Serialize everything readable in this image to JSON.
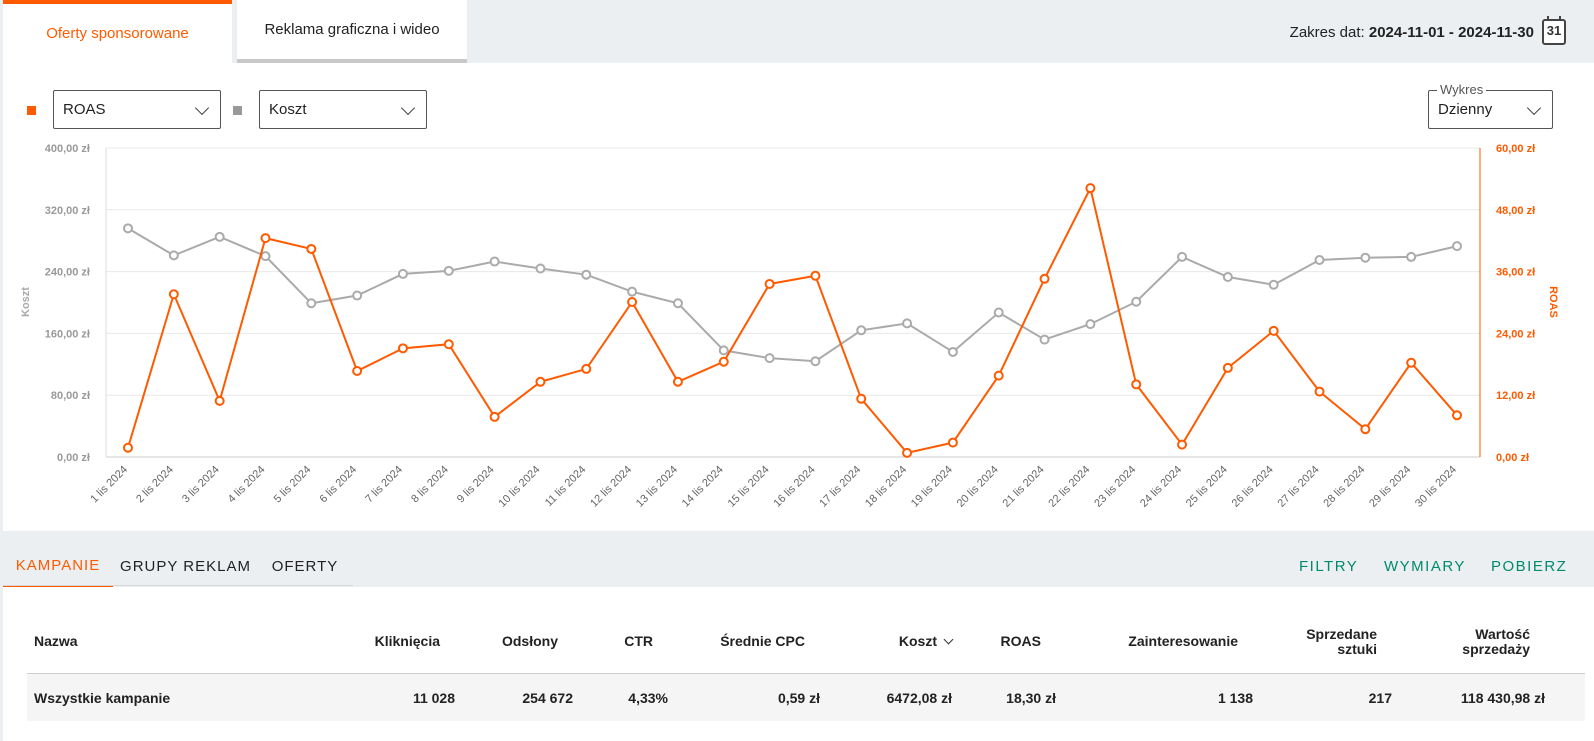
{
  "top_tabs": [
    {
      "label": "Oferty sponsorowane",
      "active": true
    },
    {
      "label": "Reklama graficzna i wideo",
      "active": false
    }
  ],
  "date_range": {
    "label": "Zakres dat:",
    "value": "2024-11-01 - 2024-11-30",
    "calendar_day": "31"
  },
  "controls": {
    "metric1": {
      "value": "ROAS",
      "color": "#ff5a00"
    },
    "metric2": {
      "value": "Koszt",
      "color": "#999999"
    },
    "chart_period": {
      "legend": "Wykres",
      "value": "Dzienny"
    }
  },
  "chart_data": {
    "type": "line",
    "x": [
      "1 lis 2024",
      "2 lis 2024",
      "3 lis 2024",
      "4 lis 2024",
      "5 lis 2024",
      "6 lis 2024",
      "7 lis 2024",
      "8 lis 2024",
      "9 lis 2024",
      "10 lis 2024",
      "11 lis 2024",
      "12 lis 2024",
      "13 lis 2024",
      "14 lis 2024",
      "15 lis 2024",
      "16 lis 2024",
      "17 lis 2024",
      "18 lis 2024",
      "19 lis 2024",
      "20 lis 2024",
      "21 lis 2024",
      "22 lis 2024",
      "23 lis 2024",
      "24 lis 2024",
      "25 lis 2024",
      "26 lis 2024",
      "27 lis 2024",
      "28 lis 2024",
      "29 lis 2024",
      "30 lis 2024"
    ],
    "series": [
      {
        "name": "Koszt",
        "axis": "left",
        "color": "#aaaaaa",
        "values": [
          296,
          261,
          285,
          260,
          199,
          209,
          237,
          241,
          253,
          244,
          236,
          214,
          199,
          138,
          128,
          124,
          164,
          173,
          136,
          187,
          152,
          172,
          201,
          259,
          233,
          223,
          255,
          258,
          259,
          273
        ]
      },
      {
        "name": "ROAS",
        "axis": "right",
        "color": "#ff5a00",
        "values": [
          1.8,
          31.6,
          10.9,
          42.5,
          40.4,
          16.7,
          21.1,
          21.9,
          7.8,
          14.6,
          17.1,
          30.1,
          14.6,
          18.5,
          33.6,
          35.2,
          11.3,
          0.8,
          2.8,
          15.8,
          34.6,
          52.2,
          14.1,
          2.4,
          17.3,
          24.5,
          12.7,
          5.4,
          18.3,
          8.1
        ]
      }
    ],
    "y_left": {
      "label": "Koszt",
      "ticks": [
        "0,00 zł",
        "80,00 zł",
        "160,00 zł",
        "240,00 zł",
        "320,00 zł",
        "400,00 zł"
      ],
      "min": 0,
      "max": 400
    },
    "y_right": {
      "label": "ROAS",
      "ticks": [
        "0,00 zł",
        "12,00 zł",
        "24,00 zł",
        "36,00 zł",
        "48,00 zł",
        "60,00 zł"
      ],
      "min": 0,
      "max": 60
    },
    "grid": true
  },
  "bottom_tabs": [
    {
      "label": "KAMPANIE",
      "active": true
    },
    {
      "label": "GRUPY REKLAM",
      "active": false
    },
    {
      "label": "OFERTY",
      "active": false
    }
  ],
  "actions": {
    "filters": "FILTRY",
    "dimensions": "WYMIARY",
    "download": "POBIERZ"
  },
  "table": {
    "headers": {
      "name": "Nazwa",
      "clicks": "Kliknięcia",
      "views": "Odsłony",
      "ctr": "CTR",
      "cpc": "Średnie CPC",
      "cost": "Koszt",
      "roas": "ROAS",
      "interest": "Zainteresowanie",
      "sold_1": "Sprzedane",
      "sold_2": "sztuki",
      "value_1": "Wartość",
      "value_2": "sprzedaży"
    },
    "total_row": {
      "name": "Wszystkie kampanie",
      "clicks": "11 028",
      "views": "254 672",
      "ctr": "4,33%",
      "cpc": "0,59 zł",
      "cost": "6472,08 zł",
      "roas": "18,30 zł",
      "interest": "1 138",
      "sold": "217",
      "value": "118 430,98 zł"
    }
  }
}
